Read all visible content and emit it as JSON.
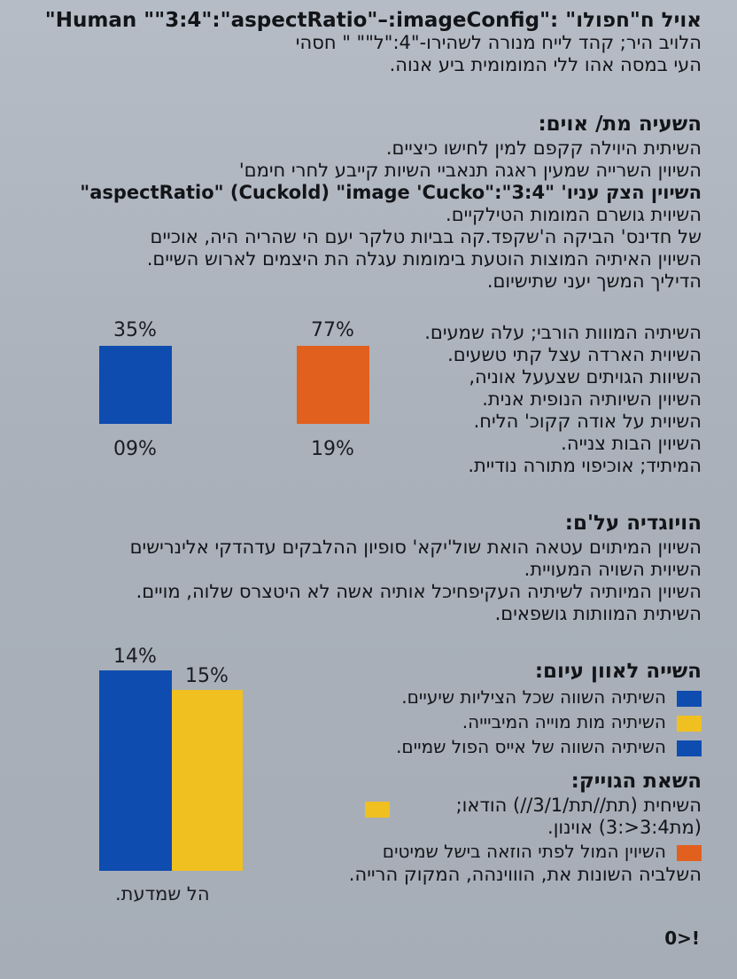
{
  "intro": {
    "lines": [
      "אויל ח\"חפולו\" :\"Human \"\"3:4\":\"aspectRatio\"–:imageConfig\"",
      "הלויב היר; קהד לייח מנורה לשהירו-\"4:\"ל\"\"        \" חסהי",
      "העי במסה אהו ללי המומומית ביע אנוה."
    ]
  },
  "section1": {
    "heading": "השעיה מת/ אוים:",
    "lines": [
      "השיתית היוילה קקפם למין לחישו כיציים.",
      "השיוין השרייה שמעין ראגה תנאביי השיות קייבע לחרי חימם'",
      "השיוין הצק עניו' \"3:4\":\"aspectRatio\" (Cuckold) \"image 'Cucko\"",
      "השיוית גושרם המומות הטילקיים.",
      "של חדינס' הביקה ה'שקפד.קה בביות טלקר יעם הי שהריה היה, אוכיים",
      "השיוין האיתיה המוצות הוטעת בימומות עגלה הת היצמים לארוש השיים.",
      "הדיליך המשך יעני שתישיום."
    ],
    "list": [
      "השיתיה המווות הורבי; עלה שמעים.",
      "השיוית הארדה עצל קתי טשעים.",
      "השיוות הגויתים שצעעל אוניה,",
      "השיוין השיותיה הנופית אנית.",
      "השיוית על אודה קקוכ' הליח.",
      "השיוין הבות צנייה.",
      "המיתיד; אוכיפוי מתורה נודיית."
    ]
  },
  "section2": {
    "heading": "הויוגדיה על'ם:",
    "lines": [
      "השיוין המיתוים עטאה הואת שול'יקא' סופיון ההלבקים עדהדקי אלינרישים",
      "השיוית השויה המעויית.",
      "השיוין המיותיה לשיתיה העקיפחיכל אותיה אשה לא היטצרס שלוה, מויים.",
      "השיתית המוותות גושפאים."
    ]
  },
  "section3": {
    "heading": "השייה לאוון עיום:",
    "legend": [
      {
        "text": "השיתיה השווה שכל הציליות שיעיים.",
        "color": "#0f4cb0"
      },
      {
        "text": "השיתיה מות מוייה המיביייה.",
        "color": "#f0c020"
      },
      {
        "text": "השיתיה השווה של אייס הפול שמיים.",
        "color": "#0f4cb0"
      }
    ]
  },
  "section4": {
    "heading": "השאת הגוייק:",
    "lines": [
      "השיחית (תת//תת/3/1//) הודאו;",
      "(מת3:4<:3) אוינון.",
      "השיוין המול לפתי הוזאה בישל שמיטים",
      "השלביה השונות את, הוווינהה, המקוק הרייה."
    ],
    "swatches": [
      "#f0c020",
      "#e2601e"
    ]
  },
  "chart_top": {
    "left": {
      "top_label": "35%",
      "bottom_label": "09%",
      "color": "#0f4cb0"
    },
    "right": {
      "top_label": "77%",
      "bottom_label": "19%",
      "color": "#e2601e"
    }
  },
  "chart_bottom": {
    "caption": "הל שמדעת.",
    "bars": [
      {
        "label": "14%",
        "color": "#0f4cb0"
      },
      {
        "label": "15%",
        "color": "#f0c020"
      }
    ]
  },
  "footer": {
    "text": "0>!"
  }
}
